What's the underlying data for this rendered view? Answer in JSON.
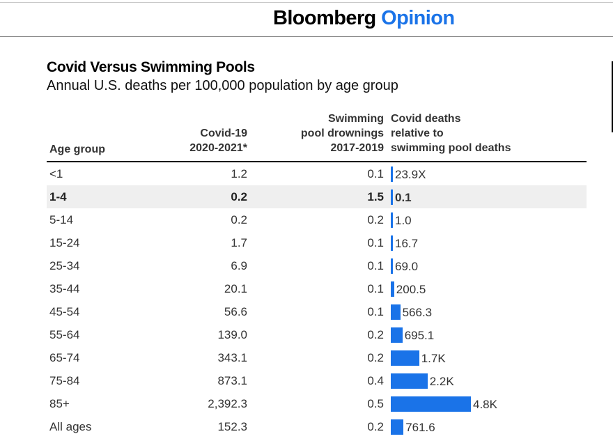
{
  "header": {
    "brand_main": "Bloomberg",
    "brand_accent": "Opinion",
    "accent_color": "#1a73e8"
  },
  "chart_data": {
    "type": "table",
    "title": "Covid Versus Swimming Pools",
    "subtitle": "Annual U.S. deaths per 100,000 population by age group",
    "columns": [
      "Age group",
      "Covid-19\n2020-2021*",
      "Swimming\npool drownings\n2017-2019",
      "Covid deaths\nrelative to\nswimming pool deaths"
    ],
    "bar_color": "#1a73e8",
    "highlighted_row": "1-4",
    "rows": [
      {
        "age": "<1",
        "covid": "1.2",
        "pool": "0.1",
        "ratio": 23.9,
        "ratio_label": "23.9X"
      },
      {
        "age": "1-4",
        "covid": "0.2",
        "pool": "1.5",
        "ratio": 0.1,
        "ratio_label": "0.1"
      },
      {
        "age": "5-14",
        "covid": "0.2",
        "pool": "0.2",
        "ratio": 1.0,
        "ratio_label": "1.0"
      },
      {
        "age": "15-24",
        "covid": "1.7",
        "pool": "0.1",
        "ratio": 16.7,
        "ratio_label": "16.7"
      },
      {
        "age": "25-34",
        "covid": "6.9",
        "pool": "0.1",
        "ratio": 69.0,
        "ratio_label": "69.0"
      },
      {
        "age": "35-44",
        "covid": "20.1",
        "pool": "0.1",
        "ratio": 200.5,
        "ratio_label": "200.5"
      },
      {
        "age": "45-54",
        "covid": "56.6",
        "pool": "0.1",
        "ratio": 566.3,
        "ratio_label": "566.3"
      },
      {
        "age": "55-64",
        "covid": "139.0",
        "pool": "0.2",
        "ratio": 695.1,
        "ratio_label": "695.1"
      },
      {
        "age": "65-74",
        "covid": "343.1",
        "pool": "0.2",
        "ratio": 1700,
        "ratio_label": "1.7K"
      },
      {
        "age": "75-84",
        "covid": "873.1",
        "pool": "0.4",
        "ratio": 2200,
        "ratio_label": "2.2K"
      },
      {
        "age": "85+",
        "covid": "2,392.3",
        "pool": "0.5",
        "ratio": 4800,
        "ratio_label": "4.8K"
      },
      {
        "age": "All ages",
        "covid": "152.3",
        "pool": "0.2",
        "ratio": 761.6,
        "ratio_label": "761.6"
      }
    ]
  }
}
